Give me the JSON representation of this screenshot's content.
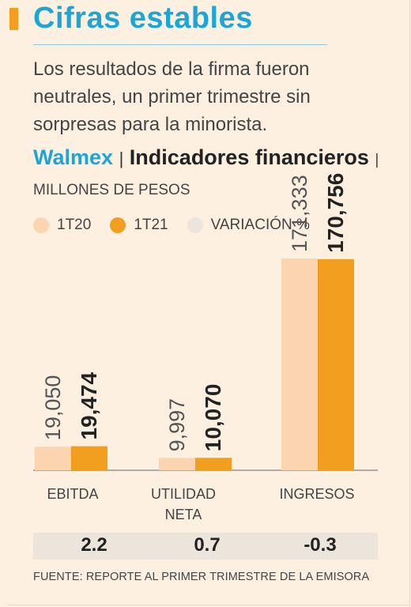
{
  "title": "Cifras estables",
  "subtitle": "Los resultados de la firma fueron neutrales, un primer trimestre sin sorpresas para la minorista.",
  "heading": {
    "company": "Walmex",
    "separator": "|",
    "indicator": "Indicadores financieros",
    "units": "| MILLONES DE PESOS"
  },
  "colors": {
    "accent": "#f29e1f",
    "title_blue": "#1aa6d9",
    "series_1t20": "#fbd4b0",
    "series_1t21": "#f29e1f",
    "variation": "#ece5db",
    "background": "#fdf0e1"
  },
  "chart_data": {
    "type": "bar",
    "categories": [
      "EBITDA",
      "UTILIDAD NETA",
      "INGRESOS"
    ],
    "series": [
      {
        "name": "1T20",
        "values": [
          19050,
          9997,
          171333
        ],
        "labels": [
          "19,050",
          "9,997",
          "171,333"
        ]
      },
      {
        "name": "1T21",
        "values": [
          19474,
          10070,
          170756
        ],
        "labels": [
          "19,474",
          "10,070",
          "170,756"
        ]
      }
    ],
    "variation": {
      "name": "VARIACIÓN %",
      "values": [
        "2.2",
        "0.7",
        "-0.3"
      ]
    },
    "legend": [
      "1T20",
      "1T21",
      "VARIACIÓN %"
    ],
    "legend_position": "top-left",
    "grid": false,
    "ylim": [
      0,
      171333
    ]
  },
  "source": "FUENTE: REPORTE AL PRIMER TRIMESTRE DE LA EMISORA"
}
